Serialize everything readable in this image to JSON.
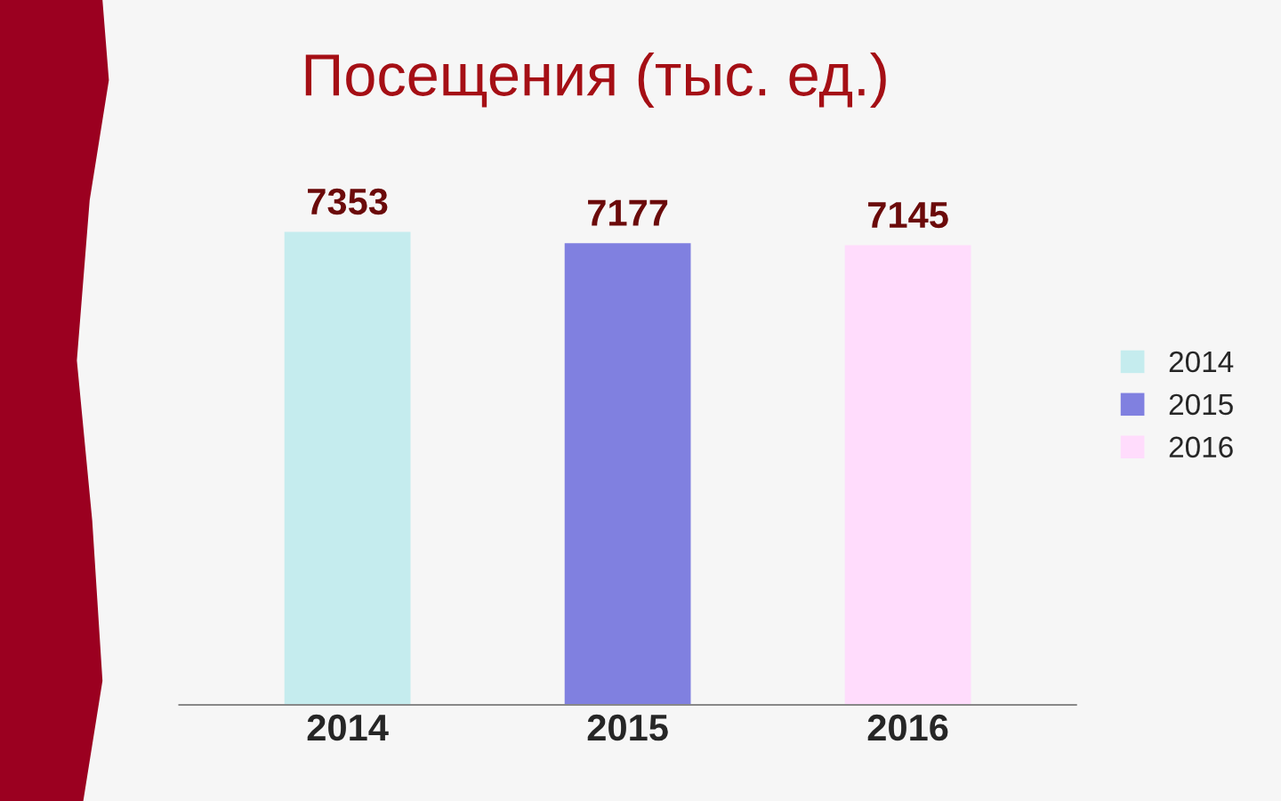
{
  "chart_data": {
    "type": "bar",
    "title": "Посещения (тыс. ед.)",
    "categories": [
      "2014",
      "2015",
      "2016"
    ],
    "series": [
      {
        "name": "2014",
        "color": "#c5ecee",
        "values": [
          7353,
          null,
          null
        ]
      },
      {
        "name": "2015",
        "color": "#8080e0",
        "values": [
          null,
          7177,
          null
        ]
      },
      {
        "name": "2016",
        "color": "#ffdcfc",
        "values": [
          null,
          null,
          7145
        ]
      }
    ],
    "data_labels": true,
    "legend": "right",
    "tick_labels": "x",
    "grid": false
  }
}
